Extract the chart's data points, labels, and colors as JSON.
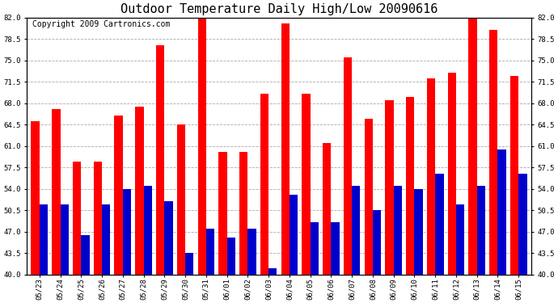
{
  "title": "Outdoor Temperature Daily High/Low 20090616",
  "copyright": "Copyright 2009 Cartronics.com",
  "dates": [
    "05/23",
    "05/24",
    "05/25",
    "05/26",
    "05/27",
    "05/28",
    "05/29",
    "05/30",
    "05/31",
    "06/01",
    "06/02",
    "06/03",
    "06/04",
    "06/05",
    "06/06",
    "06/07",
    "06/08",
    "06/09",
    "06/10",
    "06/11",
    "06/12",
    "06/13",
    "06/14",
    "06/15"
  ],
  "highs": [
    65.0,
    67.0,
    58.5,
    58.5,
    66.0,
    67.5,
    77.5,
    64.5,
    82.5,
    60.0,
    60.0,
    69.5,
    81.0,
    69.5,
    61.5,
    75.5,
    65.5,
    68.5,
    69.0,
    72.0,
    73.0,
    82.0,
    80.0,
    72.5
  ],
  "lows": [
    51.5,
    51.5,
    46.5,
    51.5,
    54.0,
    54.5,
    52.0,
    43.5,
    47.5,
    46.0,
    47.5,
    41.0,
    53.0,
    48.5,
    48.5,
    54.5,
    50.5,
    54.5,
    54.0,
    56.5,
    51.5,
    54.5,
    60.5,
    56.5
  ],
  "high_color": "#ff0000",
  "low_color": "#0000cc",
  "ylim_min": 40.0,
  "ylim_max": 82.0,
  "yticks": [
    40.0,
    43.5,
    47.0,
    50.5,
    54.0,
    57.5,
    61.0,
    64.5,
    68.0,
    71.5,
    75.0,
    78.5,
    82.0
  ],
  "bg_color": "#ffffff",
  "plot_bg_color": "#ffffff",
  "grid_color": "#aaaaaa",
  "title_fontsize": 11,
  "copyright_fontsize": 7,
  "bar_width": 0.4
}
